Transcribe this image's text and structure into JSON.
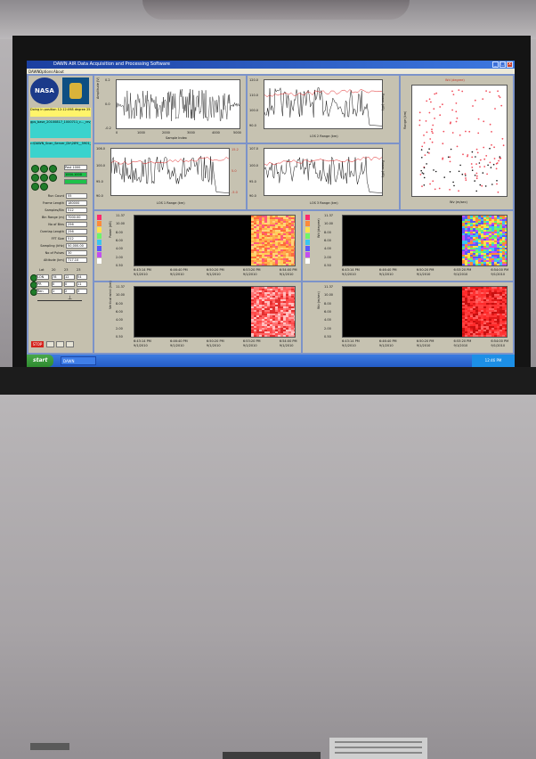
{
  "window": {
    "title": "DAWN AIR Data Acquisition and Processing Software"
  },
  "menu": [
    "DAWN",
    "Options",
    "About"
  ],
  "left_panel": {
    "logo_1": "NASA",
    "status_message": "Doing in position 12:12:098 degree 25",
    "file_box_1": "gps_base_20100817_1000711_c..._rev_v1_BBB_NEWSUN",
    "file_box_2": "c:\\DAWN_Scan_Server_Dir\\28Yl__5901_14230_",
    "fields": [
      "Post 1000",
      "1004.1000"
    ],
    "params": [
      {
        "label": "Run Count",
        "value": "55"
      },
      {
        "label": "Frame Length",
        "value": "180000"
      },
      {
        "label": "Samples/Bin",
        "value": "512"
      },
      {
        "label": "Bin Range (m)",
        "value": "7000.00"
      },
      {
        "label": "No of Bins",
        "value": "256"
      },
      {
        "label": "Overlap Length",
        "value": "256"
      },
      {
        "label": "FFT Size",
        "value": "512"
      },
      {
        "label": "Sampling (kHz)",
        "value": "50,000.00"
      },
      {
        "label": "No of Pulses",
        "value": "30"
      },
      {
        "label": "Altitude (km)",
        "value": "717.10"
      }
    ],
    "grid_headers": [
      "Lat",
      "20",
      "23",
      "23"
    ],
    "grid_rows": [
      [
        "LON",
        "78",
        "12",
        "54"
      ],
      [
        "PR",
        "0",
        "0",
        "11"
      ],
      [
        "Ren",
        "1",
        "2",
        "3"
      ]
    ],
    "stop_label": "STOP"
  },
  "plots": {
    "raw": {
      "ylabel": "Amplitude (V)",
      "xlabel": "Sample Index",
      "xticks": [
        "0",
        "1000",
        "2000",
        "3000",
        "4000",
        "5000"
      ],
      "yticks": [
        "0.2",
        "0.0",
        "-0.2"
      ]
    },
    "los1_top": {
      "ylabel": "Doppler Shift (MHz)",
      "xlabel": "LOS 1 Range (km)",
      "yticks_left": [
        "106.0",
        "102.0",
        "98.0",
        "94.0",
        "90.0"
      ],
      "yticks_right": [
        "15.2",
        "10.0",
        "5.0",
        "0.0",
        "-5.0"
      ],
      "ylabel2": "Power (dB)"
    },
    "los1_bot": {
      "ylabel": "Doppler Shift (MHz)",
      "xlabel": "LOS 1 Range (km)",
      "xticks": [
        "0.50",
        "2.50",
        "4.50",
        "6.50",
        "8.50",
        "10.5",
        "12.5",
        "14.5",
        "16.50"
      ],
      "yticks_left": [
        "106.0",
        "100.0",
        "95.0",
        "90.0"
      ],
      "yticks_right": [
        "15.2",
        "5.0",
        "-5.0"
      ]
    },
    "los2_top": {
      "xlabel": "LOS 2 Range (km)",
      "yticks_left": [
        "120.0",
        "110.0",
        "100.0",
        "90.0"
      ],
      "ylabel2": "Power (dB)"
    },
    "los2_bot": {
      "xlabel": "LOS 3 Range (km)",
      "yticks_left": [
        "107.0",
        "100.0",
        "95.0",
        "90.0"
      ],
      "ylabel2": "Power (dB)"
    },
    "scatter": {
      "top_label": "Wd (degree)",
      "xlabel": "Wv (m/sec)",
      "ylabel": "Range (km)"
    },
    "wt1": {
      "ylabel": "Power (dB)",
      "yticks": [
        "11.37",
        "10.00",
        "8.00",
        "6.00",
        "4.00",
        "2.00",
        "0.50"
      ],
      "xticks": [
        "6:43:14 PM",
        "6:46:40 PM",
        "6:50:20 PM",
        "6:53:20 PM",
        "6:54:00 PM"
      ]
    },
    "wt2": {
      "ylabel": "Wd (degree)",
      "yticks": [
        "11.37",
        "10.00",
        "8.00",
        "6.00",
        "4.00",
        "2.00",
        "0.50"
      ],
      "xticks": [
        "6:43:14 PM",
        "6:46:40 PM",
        "6:50:20 PM",
        "6:53:20 PM",
        "6:54:00 PM"
      ]
    },
    "wt3": {
      "ylabel": "Vertical wind (km)",
      "yticks": [
        "11.37",
        "10.00",
        "8.00",
        "6.00",
        "4.00",
        "2.00",
        "0.50"
      ],
      "xticks": [
        "6:43:14 PM",
        "6:46:40 PM",
        "6:50:20 PM",
        "6:53:20 PM",
        "6:54:00 PM"
      ]
    },
    "wt4": {
      "ylabel": "Wv (m/sec)",
      "yticks": [
        "11.37",
        "10.00",
        "8.00",
        "6.00",
        "4.00",
        "2.00",
        "0.50"
      ],
      "xticks": [
        "6:43:14 PM",
        "6:46:40 PM",
        "6:50:20 PM",
        "6:53:20 PM",
        "6:54:00 PM"
      ]
    },
    "date_tick": "9/1/2010"
  },
  "colorbar_colors": [
    "#ff2a6e",
    "#ff8a3a",
    "#ffe14a",
    "#6ef56a",
    "#3ac6f0",
    "#5a58ff",
    "#c44ef0",
    "#ffffff"
  ],
  "taskbar": {
    "start": "start",
    "task": "DAWN",
    "tray": "12:46 PM"
  },
  "colors": {
    "app_bg": "#7c93c9",
    "panel_bg": "#c6c2b1",
    "trace": "#111111",
    "power_trace": "#e02020"
  }
}
